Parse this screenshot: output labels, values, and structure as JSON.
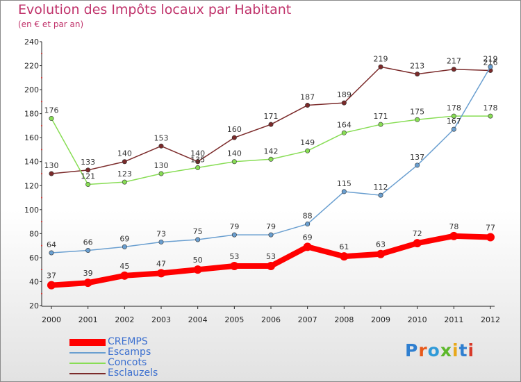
{
  "title": "Evolution des Impôts locaux par Habitant",
  "subtitle": "(en € et par an)",
  "logo": "Proxiti",
  "chart_data": {
    "type": "line",
    "title": "Evolution des Impôts locaux par Habitant",
    "subtitle": "(en € et par an)",
    "xlabel": "",
    "ylabel": "",
    "x": [
      "2000",
      "2001",
      "2002",
      "2003",
      "2004",
      "2005",
      "2006",
      "2007",
      "2008",
      "2009",
      "2010",
      "2011",
      "2012"
    ],
    "ylim": [
      20,
      240
    ],
    "yticks": [
      20,
      40,
      60,
      80,
      100,
      120,
      140,
      160,
      180,
      200,
      220,
      240
    ],
    "grid": false,
    "legend_position": "bottom-left",
    "series": [
      {
        "name": "CREMPS",
        "color": "#ff0000",
        "values": [
          37,
          39,
          45,
          47,
          50,
          53,
          53,
          69,
          61,
          63,
          72,
          78,
          77
        ]
      },
      {
        "name": "Escamps",
        "color": "#6a9fd0",
        "values": [
          64,
          66,
          69,
          73,
          75,
          79,
          79,
          88,
          115,
          112,
          137,
          167,
          219
        ]
      },
      {
        "name": "Concots",
        "color": "#88dd55",
        "values": [
          176,
          121,
          123,
          130,
          135,
          140,
          142,
          149,
          164,
          171,
          175,
          178,
          178
        ]
      },
      {
        "name": "Esclauzels",
        "color": "#7b2a2a",
        "values": [
          130,
          133,
          140,
          153,
          140,
          160,
          171,
          187,
          189,
          219,
          213,
          217,
          216
        ]
      }
    ]
  }
}
